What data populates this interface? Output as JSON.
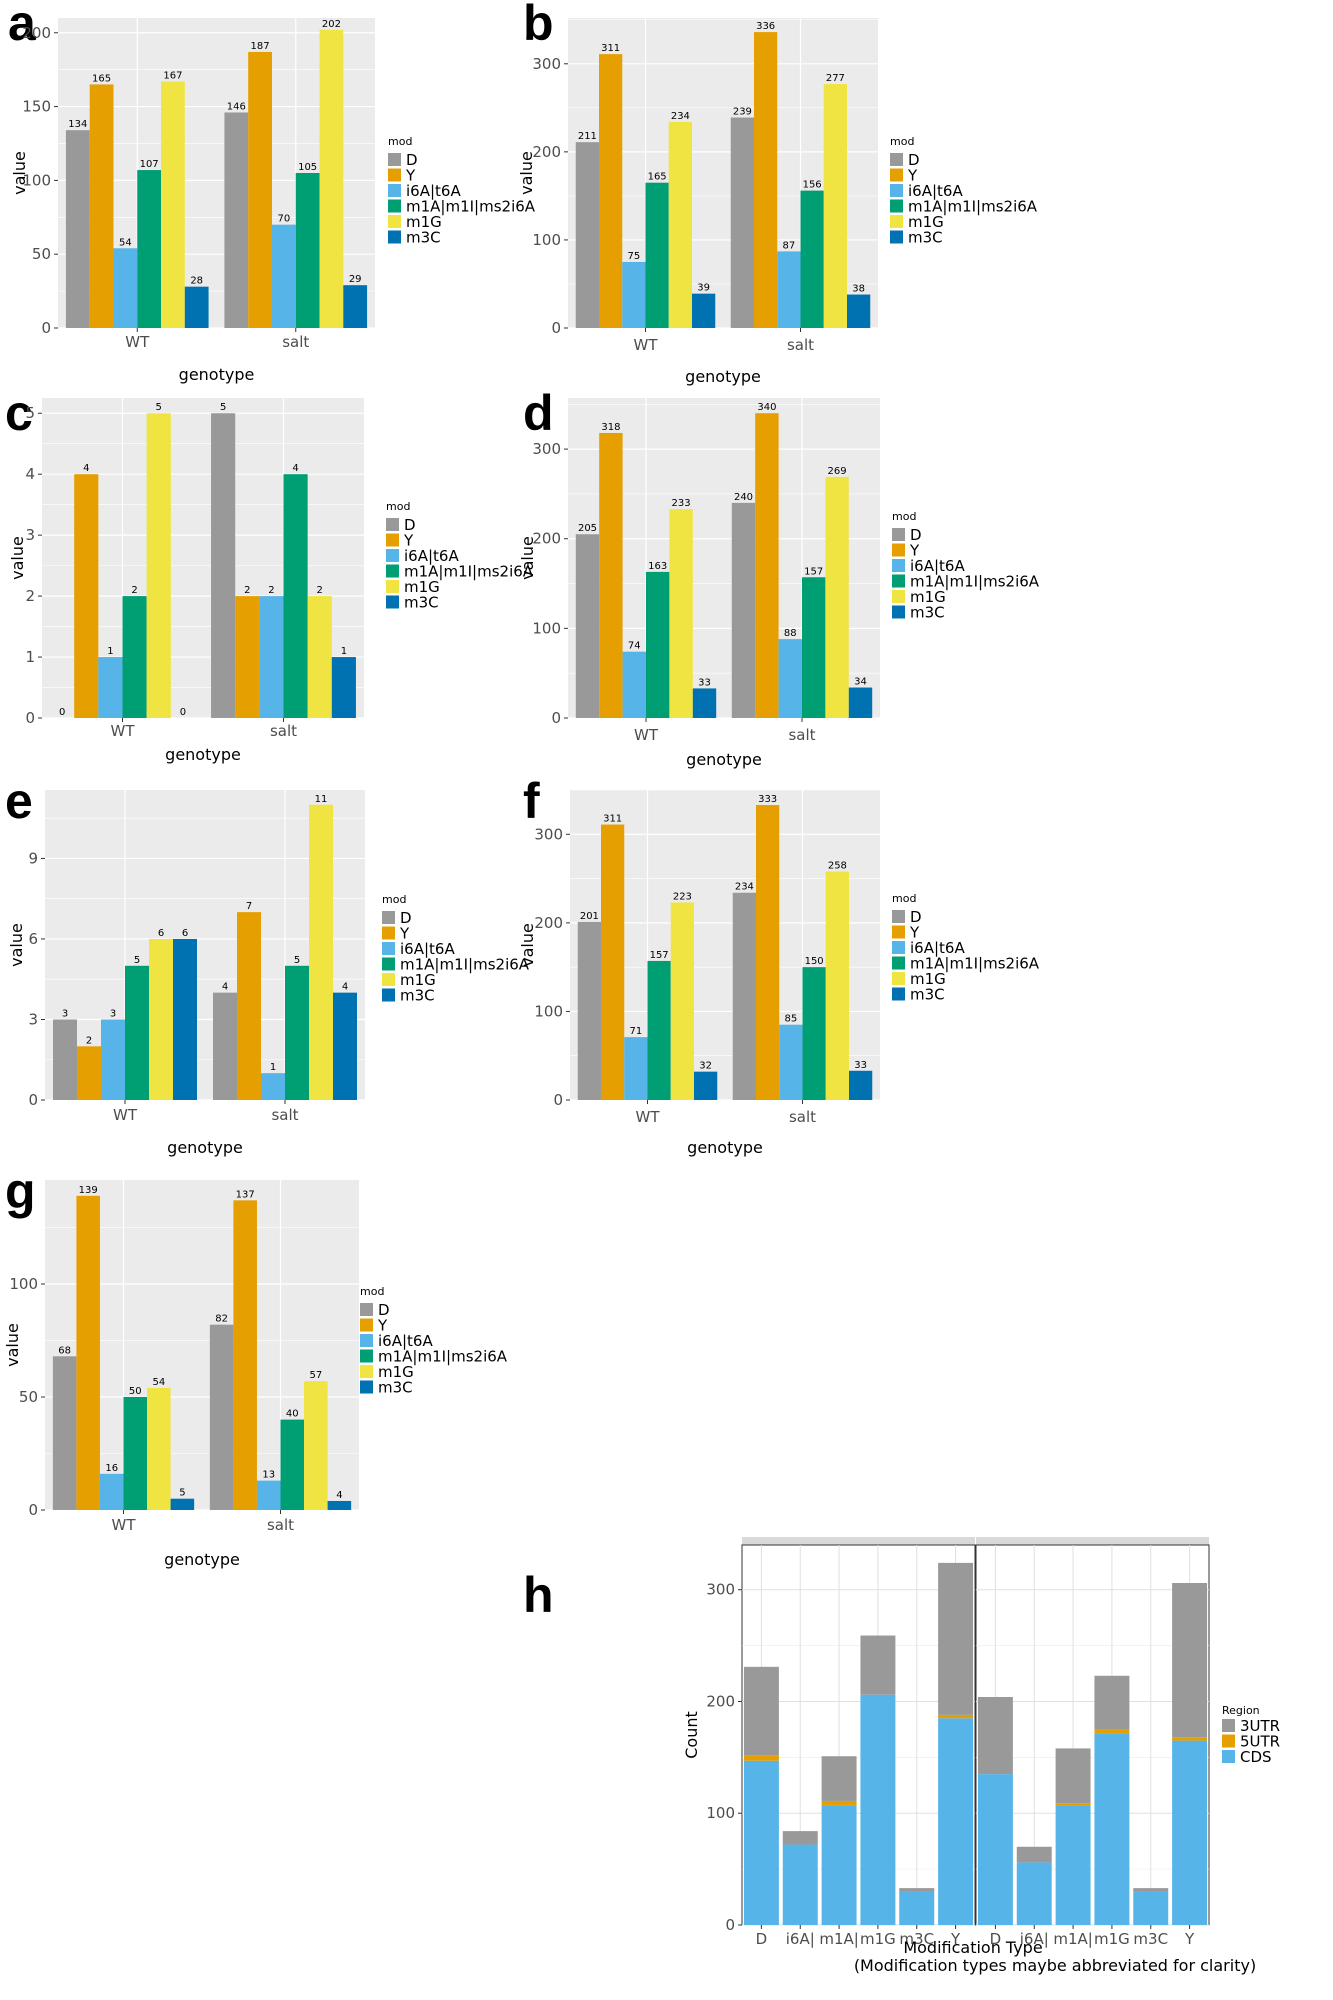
{
  "colors": {
    "D": "#999999",
    "Y": "#E69F00",
    "i6A|t6A": "#56B4E9",
    "m1A|m1I|ms2i6A": "#009E73",
    "m1G": "#F0E442",
    "m3C": "#0072B2",
    "3UTR": "#999999",
    "5UTR": "#E69F00",
    "CDS": "#56B4E9",
    "panel_bg": "#EBEBEB",
    "grid": "#FFFFFF"
  },
  "chart_data": [
    {
      "panel": "a",
      "type": "bar",
      "categories": [
        "WT",
        "salt"
      ],
      "xlabel": "genotype",
      "ylabel": "value",
      "ylim": [
        0,
        210
      ],
      "yticks": [
        0,
        50,
        100,
        150,
        200
      ],
      "legend_title": "mod",
      "series": [
        {
          "name": "D",
          "values": [
            134,
            146
          ]
        },
        {
          "name": "Y",
          "values": [
            165,
            187
          ]
        },
        {
          "name": "i6A|t6A",
          "values": [
            54,
            70
          ]
        },
        {
          "name": "m1A|m1I|ms2i6A",
          "values": [
            107,
            105
          ]
        },
        {
          "name": "m1G",
          "values": [
            167,
            202
          ]
        },
        {
          "name": "m3C",
          "values": [
            28,
            29
          ]
        }
      ]
    },
    {
      "panel": "b",
      "type": "bar",
      "categories": [
        "WT",
        "salt"
      ],
      "xlabel": "genotype",
      "ylabel": "value",
      "ylim": [
        0,
        352
      ],
      "yticks": [
        0,
        100,
        200,
        300
      ],
      "legend_title": "mod",
      "series": [
        {
          "name": "D",
          "values": [
            211,
            239
          ]
        },
        {
          "name": "Y",
          "values": [
            311,
            336
          ]
        },
        {
          "name": "i6A|t6A",
          "values": [
            75,
            87
          ]
        },
        {
          "name": "m1A|m1I|ms2i6A",
          "values": [
            165,
            156
          ]
        },
        {
          "name": "m1G",
          "values": [
            234,
            277
          ]
        },
        {
          "name": "m3C",
          "values": [
            39,
            38
          ]
        }
      ]
    },
    {
      "panel": "c",
      "type": "bar",
      "categories": [
        "WT",
        "salt"
      ],
      "xlabel": "genotype",
      "ylabel": "value",
      "ylim": [
        0,
        5.25
      ],
      "yticks": [
        0,
        1,
        2,
        3,
        4,
        5
      ],
      "legend_title": "mod",
      "series": [
        {
          "name": "D",
          "values": [
            0,
            5
          ]
        },
        {
          "name": "Y",
          "values": [
            4,
            2
          ]
        },
        {
          "name": "i6A|t6A",
          "values": [
            1,
            2
          ]
        },
        {
          "name": "m1A|m1I|ms2i6A",
          "values": [
            2,
            4
          ]
        },
        {
          "name": "m1G",
          "values": [
            5,
            2
          ]
        },
        {
          "name": "m3C",
          "values": [
            0,
            1
          ]
        }
      ]
    },
    {
      "panel": "d",
      "type": "bar",
      "categories": [
        "WT",
        "salt"
      ],
      "xlabel": "genotype",
      "ylabel": "value",
      "ylim": [
        0,
        357
      ],
      "yticks": [
        0,
        100,
        200,
        300
      ],
      "legend_title": "mod",
      "series": [
        {
          "name": "D",
          "values": [
            205,
            240
          ]
        },
        {
          "name": "Y",
          "values": [
            318,
            340
          ]
        },
        {
          "name": "i6A|t6A",
          "values": [
            74,
            88
          ]
        },
        {
          "name": "m1A|m1I|ms2i6A",
          "values": [
            163,
            157
          ]
        },
        {
          "name": "m1G",
          "values": [
            233,
            269
          ]
        },
        {
          "name": "m3C",
          "values": [
            33,
            34
          ]
        }
      ]
    },
    {
      "panel": "e",
      "type": "bar",
      "categories": [
        "WT",
        "salt"
      ],
      "xlabel": "genotype",
      "ylabel": "value",
      "ylim": [
        0,
        11.55
      ],
      "yticks": [
        0,
        3,
        6,
        9
      ],
      "legend_title": "mod",
      "series": [
        {
          "name": "D",
          "values": [
            3,
            4
          ]
        },
        {
          "name": "Y",
          "values": [
            2,
            7
          ]
        },
        {
          "name": "i6A|t6A",
          "values": [
            3,
            1
          ]
        },
        {
          "name": "m1A|m1I|ms2i6A",
          "values": [
            5,
            5
          ]
        },
        {
          "name": "m1G",
          "values": [
            6,
            11
          ]
        },
        {
          "name": "m3C",
          "values": [
            6,
            4
          ]
        }
      ]
    },
    {
      "panel": "f",
      "type": "bar",
      "categories": [
        "WT",
        "salt"
      ],
      "xlabel": "genotype",
      "ylabel": "value",
      "ylim": [
        0,
        350
      ],
      "yticks": [
        0,
        100,
        200,
        300
      ],
      "legend_title": "mod",
      "series": [
        {
          "name": "D",
          "values": [
            201,
            234
          ]
        },
        {
          "name": "Y",
          "values": [
            311,
            333
          ]
        },
        {
          "name": "i6A|t6A",
          "values": [
            71,
            85
          ]
        },
        {
          "name": "m1A|m1I|ms2i6A",
          "values": [
            157,
            150
          ]
        },
        {
          "name": "m1G",
          "values": [
            223,
            258
          ]
        },
        {
          "name": "m3C",
          "values": [
            32,
            33
          ]
        }
      ]
    },
    {
      "panel": "g",
      "type": "bar",
      "categories": [
        "WT",
        "salt"
      ],
      "xlabel": "genotype",
      "ylabel": "value",
      "ylim": [
        0,
        146
      ],
      "yticks": [
        0,
        50,
        100
      ],
      "legend_title": "mod",
      "series": [
        {
          "name": "D",
          "values": [
            68,
            82
          ]
        },
        {
          "name": "Y",
          "values": [
            139,
            137
          ]
        },
        {
          "name": "i6A|t6A",
          "values": [
            16,
            13
          ]
        },
        {
          "name": "m1A|m1I|ms2i6A",
          "values": [
            50,
            40
          ]
        },
        {
          "name": "m1G",
          "values": [
            54,
            57
          ]
        },
        {
          "name": "m3C",
          "values": [
            5,
            4
          ]
        }
      ]
    },
    {
      "panel": "h",
      "type": "bar",
      "stacked": true,
      "categories": [
        "D",
        "i6A|",
        "m1A|",
        "m1G",
        "m3C",
        "Y"
      ],
      "xlabel": "Modification Type",
      "xlabel_note": "(Modification types maybe abbreviated for clarity)",
      "ylabel": "Count",
      "ylim": [
        0,
        340
      ],
      "yticks": [
        0,
        100,
        200,
        300
      ],
      "legend_title": "Region",
      "facets": [
        {
          "series": [
            {
              "name": "CDS",
              "values": [
                147,
                72,
                107,
                206,
                30,
                185
              ]
            },
            {
              "name": "5UTR",
              "values": [
                5,
                0,
                4,
                0,
                0,
                3
              ]
            },
            {
              "name": "3UTR",
              "values": [
                79,
                12,
                40,
                53,
                3,
                136
              ]
            }
          ]
        },
        {
          "series": [
            {
              "name": "CDS",
              "values": [
                135,
                56,
                107,
                171,
                30,
                165
              ]
            },
            {
              "name": "5UTR",
              "values": [
                0,
                0,
                2,
                4,
                0,
                3
              ]
            },
            {
              "name": "3UTR",
              "values": [
                69,
                14,
                49,
                48,
                3,
                138
              ]
            }
          ]
        }
      ],
      "legend_order": [
        "3UTR",
        "5UTR",
        "CDS"
      ]
    }
  ]
}
